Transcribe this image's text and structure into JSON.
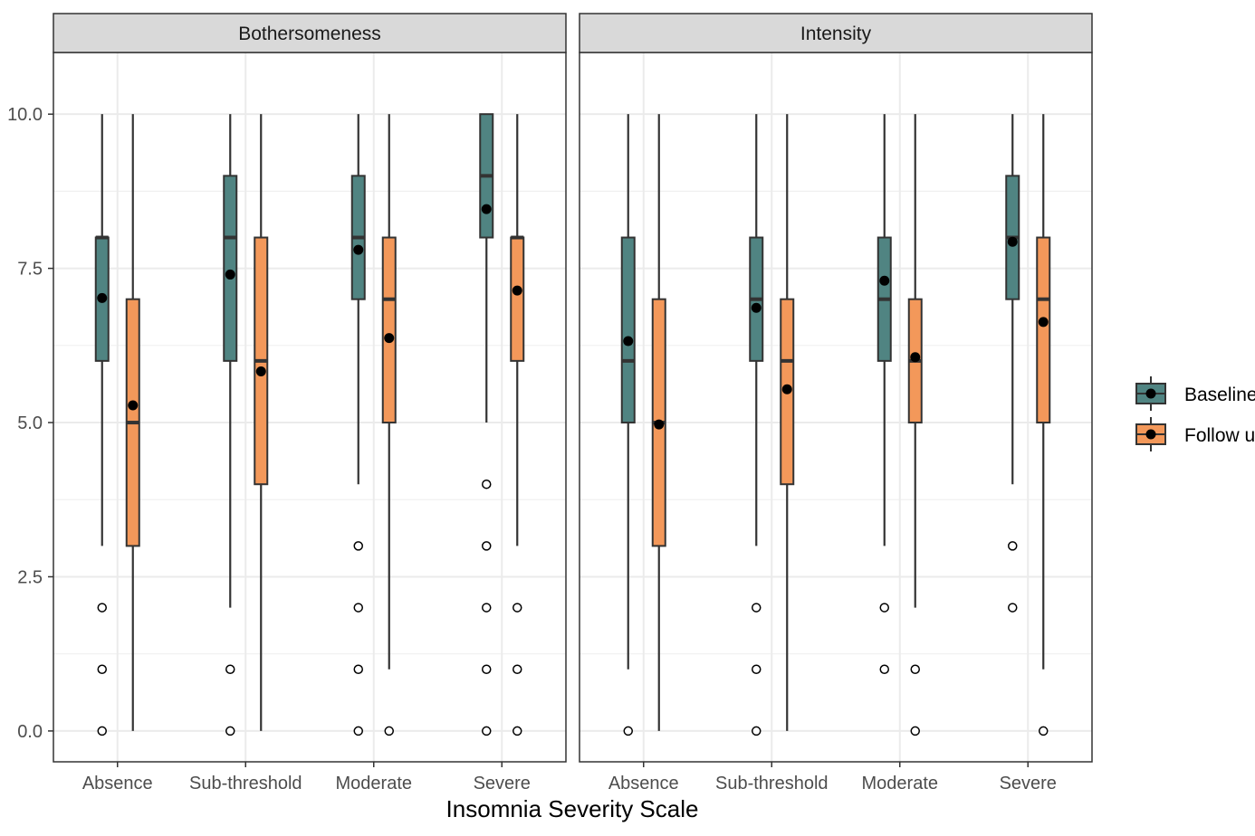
{
  "chart_data": {
    "type": "boxplot",
    "xlabel": "Insomnia Severity Scale",
    "ylabel": "",
    "ylim": [
      -0.5,
      11.0
    ],
    "yticks": [
      0.0,
      2.5,
      5.0,
      7.5,
      10.0
    ],
    "ytick_labels": [
      "0.0",
      "2.5",
      "5.0",
      "7.5",
      "10.0"
    ],
    "categories": [
      "Absence",
      "Sub-threshold",
      "Moderate",
      "Severe"
    ],
    "grid": true,
    "legend_position": "right",
    "series_colors": {
      "Baseline": "#508482",
      "Follow up": "#F3985A"
    },
    "legend": [
      {
        "name": "Baseline",
        "color": "#508482"
      },
      {
        "name": "Follow up",
        "color": "#F3985A"
      }
    ],
    "panels": [
      {
        "title": "Bothersomeness",
        "groups": [
          {
            "category": "Absence",
            "series": "Baseline",
            "whisker_low": 3,
            "q1": 6,
            "median": 8,
            "q3": 8,
            "whisker_high": 10,
            "mean": 7.02,
            "outliers": [
              2,
              1,
              0
            ]
          },
          {
            "category": "Absence",
            "series": "Follow up",
            "whisker_low": 0,
            "q1": 3,
            "median": 5,
            "q3": 7,
            "whisker_high": 10,
            "mean": 5.28,
            "outliers": []
          },
          {
            "category": "Sub-threshold",
            "series": "Baseline",
            "whisker_low": 2,
            "q1": 6,
            "median": 8,
            "q3": 9,
            "whisker_high": 10,
            "mean": 7.4,
            "outliers": [
              1,
              0
            ]
          },
          {
            "category": "Sub-threshold",
            "series": "Follow up",
            "whisker_low": 0,
            "q1": 4,
            "median": 6,
            "q3": 8,
            "whisker_high": 10,
            "mean": 5.83,
            "outliers": []
          },
          {
            "category": "Moderate",
            "series": "Baseline",
            "whisker_low": 4,
            "q1": 7,
            "median": 8,
            "q3": 9,
            "whisker_high": 10,
            "mean": 7.8,
            "outliers": [
              3,
              2,
              1,
              0
            ]
          },
          {
            "category": "Moderate",
            "series": "Follow up",
            "whisker_low": 1,
            "q1": 5,
            "median": 7,
            "q3": 8,
            "whisker_high": 10,
            "mean": 6.37,
            "outliers": [
              0
            ]
          },
          {
            "category": "Severe",
            "series": "Baseline",
            "whisker_low": 5,
            "q1": 8,
            "median": 9,
            "q3": 10,
            "whisker_high": 10,
            "mean": 8.46,
            "outliers": [
              4,
              3,
              2,
              1,
              0
            ]
          },
          {
            "category": "Severe",
            "series": "Follow up",
            "whisker_low": 3,
            "q1": 6,
            "median": 8,
            "q3": 8,
            "whisker_high": 10,
            "mean": 7.14,
            "outliers": [
              2,
              1,
              0
            ]
          }
        ]
      },
      {
        "title": "Intensity",
        "groups": [
          {
            "category": "Absence",
            "series": "Baseline",
            "whisker_low": 1,
            "q1": 5,
            "median": 6,
            "q3": 8,
            "whisker_high": 10,
            "mean": 6.32,
            "outliers": [
              0
            ]
          },
          {
            "category": "Absence",
            "series": "Follow up",
            "whisker_low": 0,
            "q1": 3,
            "median": 5,
            "q3": 7,
            "whisker_high": 10,
            "mean": 4.97,
            "outliers": []
          },
          {
            "category": "Sub-threshold",
            "series": "Baseline",
            "whisker_low": 3,
            "q1": 6,
            "median": 7,
            "q3": 8,
            "whisker_high": 10,
            "mean": 6.86,
            "outliers": [
              2,
              1,
              0
            ]
          },
          {
            "category": "Sub-threshold",
            "series": "Follow up",
            "whisker_low": 0,
            "q1": 4,
            "median": 6,
            "q3": 7,
            "whisker_high": 10,
            "mean": 5.54,
            "outliers": []
          },
          {
            "category": "Moderate",
            "series": "Baseline",
            "whisker_low": 3,
            "q1": 6,
            "median": 7,
            "q3": 8,
            "whisker_high": 10,
            "mean": 7.3,
            "outliers": [
              2,
              1
            ]
          },
          {
            "category": "Moderate",
            "series": "Follow up",
            "whisker_low": 2,
            "q1": 5,
            "median": 6,
            "q3": 7,
            "whisker_high": 10,
            "mean": 6.06,
            "outliers": [
              1,
              0
            ]
          },
          {
            "category": "Severe",
            "series": "Baseline",
            "whisker_low": 4,
            "q1": 7,
            "median": 8,
            "q3": 9,
            "whisker_high": 10,
            "mean": 7.93,
            "outliers": [
              3,
              2
            ]
          },
          {
            "category": "Severe",
            "series": "Follow up",
            "whisker_low": 1,
            "q1": 5,
            "median": 7,
            "q3": 8,
            "whisker_high": 10,
            "mean": 6.63,
            "outliers": [
              0
            ]
          }
        ]
      }
    ]
  }
}
